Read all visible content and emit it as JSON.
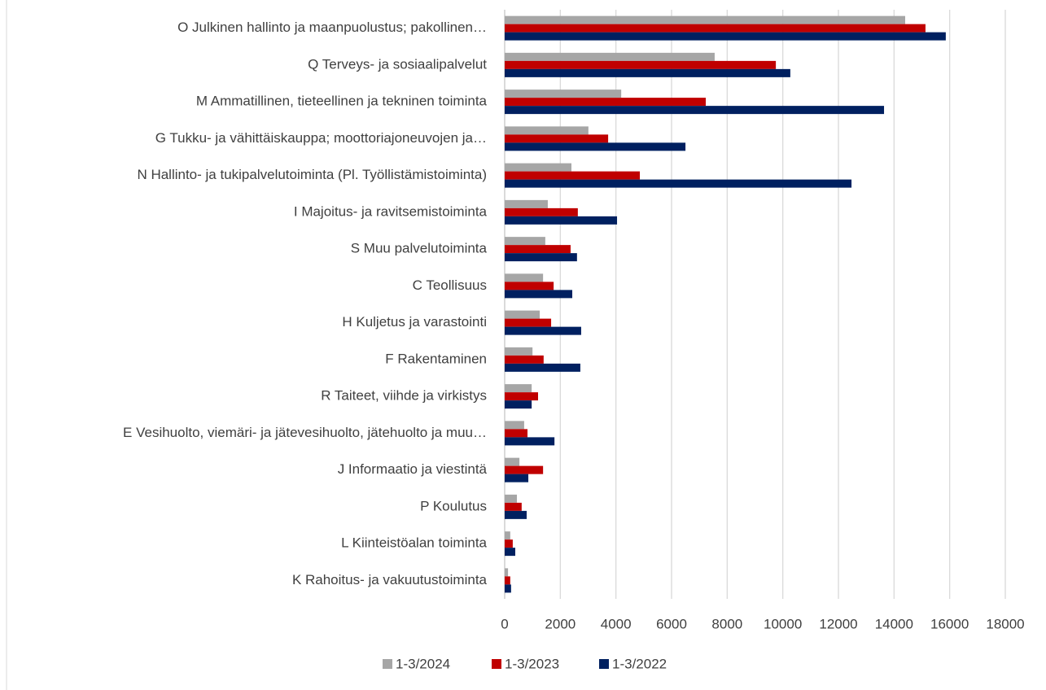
{
  "chart_data": {
    "type": "bar",
    "orientation": "horizontal",
    "categories": [
      "O Julkinen hallinto ja maanpuolustus; pakollinen…",
      "Q Terveys- ja sosiaalipalvelut",
      "M Ammatillinen, tieteellinen ja tekninen toiminta",
      "G Tukku- ja vähittäiskauppa; moottoriajoneuvojen ja…",
      "N Hallinto- ja tukipalvelutoiminta (Pl. Työllistämistoiminta)",
      "I Majoitus- ja ravitsemistoiminta",
      "S Muu palvelutoiminta",
      "C Teollisuus",
      "H Kuljetus ja varastointi",
      "F Rakentaminen",
      "R Taiteet, viihde ja virkistys",
      "E Vesihuolto, viemäri- ja jätevesihuolto, jätehuolto ja muu…",
      "J Informaatio ja viestintä",
      "P Koulutus",
      "L Kiinteistöalan toiminta",
      "K Rahoitus- ja vakuutustoiminta"
    ],
    "series": [
      {
        "name": "1-3/2024",
        "color": "#a6a6a6",
        "values": [
          14400,
          7550,
          4190,
          3010,
          2400,
          1550,
          1460,
          1380,
          1260,
          1000,
          970,
          700,
          530,
          440,
          200,
          120
        ]
      },
      {
        "name": "1-3/2023",
        "color": "#c00000",
        "values": [
          15130,
          9750,
          7230,
          3720,
          4860,
          2630,
          2370,
          1760,
          1670,
          1400,
          1200,
          820,
          1380,
          610,
          290,
          200
        ]
      },
      {
        "name": "1-3/2022",
        "color": "#002060",
        "values": [
          15860,
          10270,
          13640,
          6500,
          12470,
          4040,
          2600,
          2430,
          2750,
          2720,
          970,
          1790,
          850,
          790,
          380,
          230
        ]
      }
    ],
    "xlim": [
      0,
      18000
    ],
    "xticks": [
      0,
      2000,
      4000,
      6000,
      8000,
      10000,
      12000,
      14000,
      16000,
      18000
    ],
    "grid": true,
    "legend": "bottom"
  }
}
